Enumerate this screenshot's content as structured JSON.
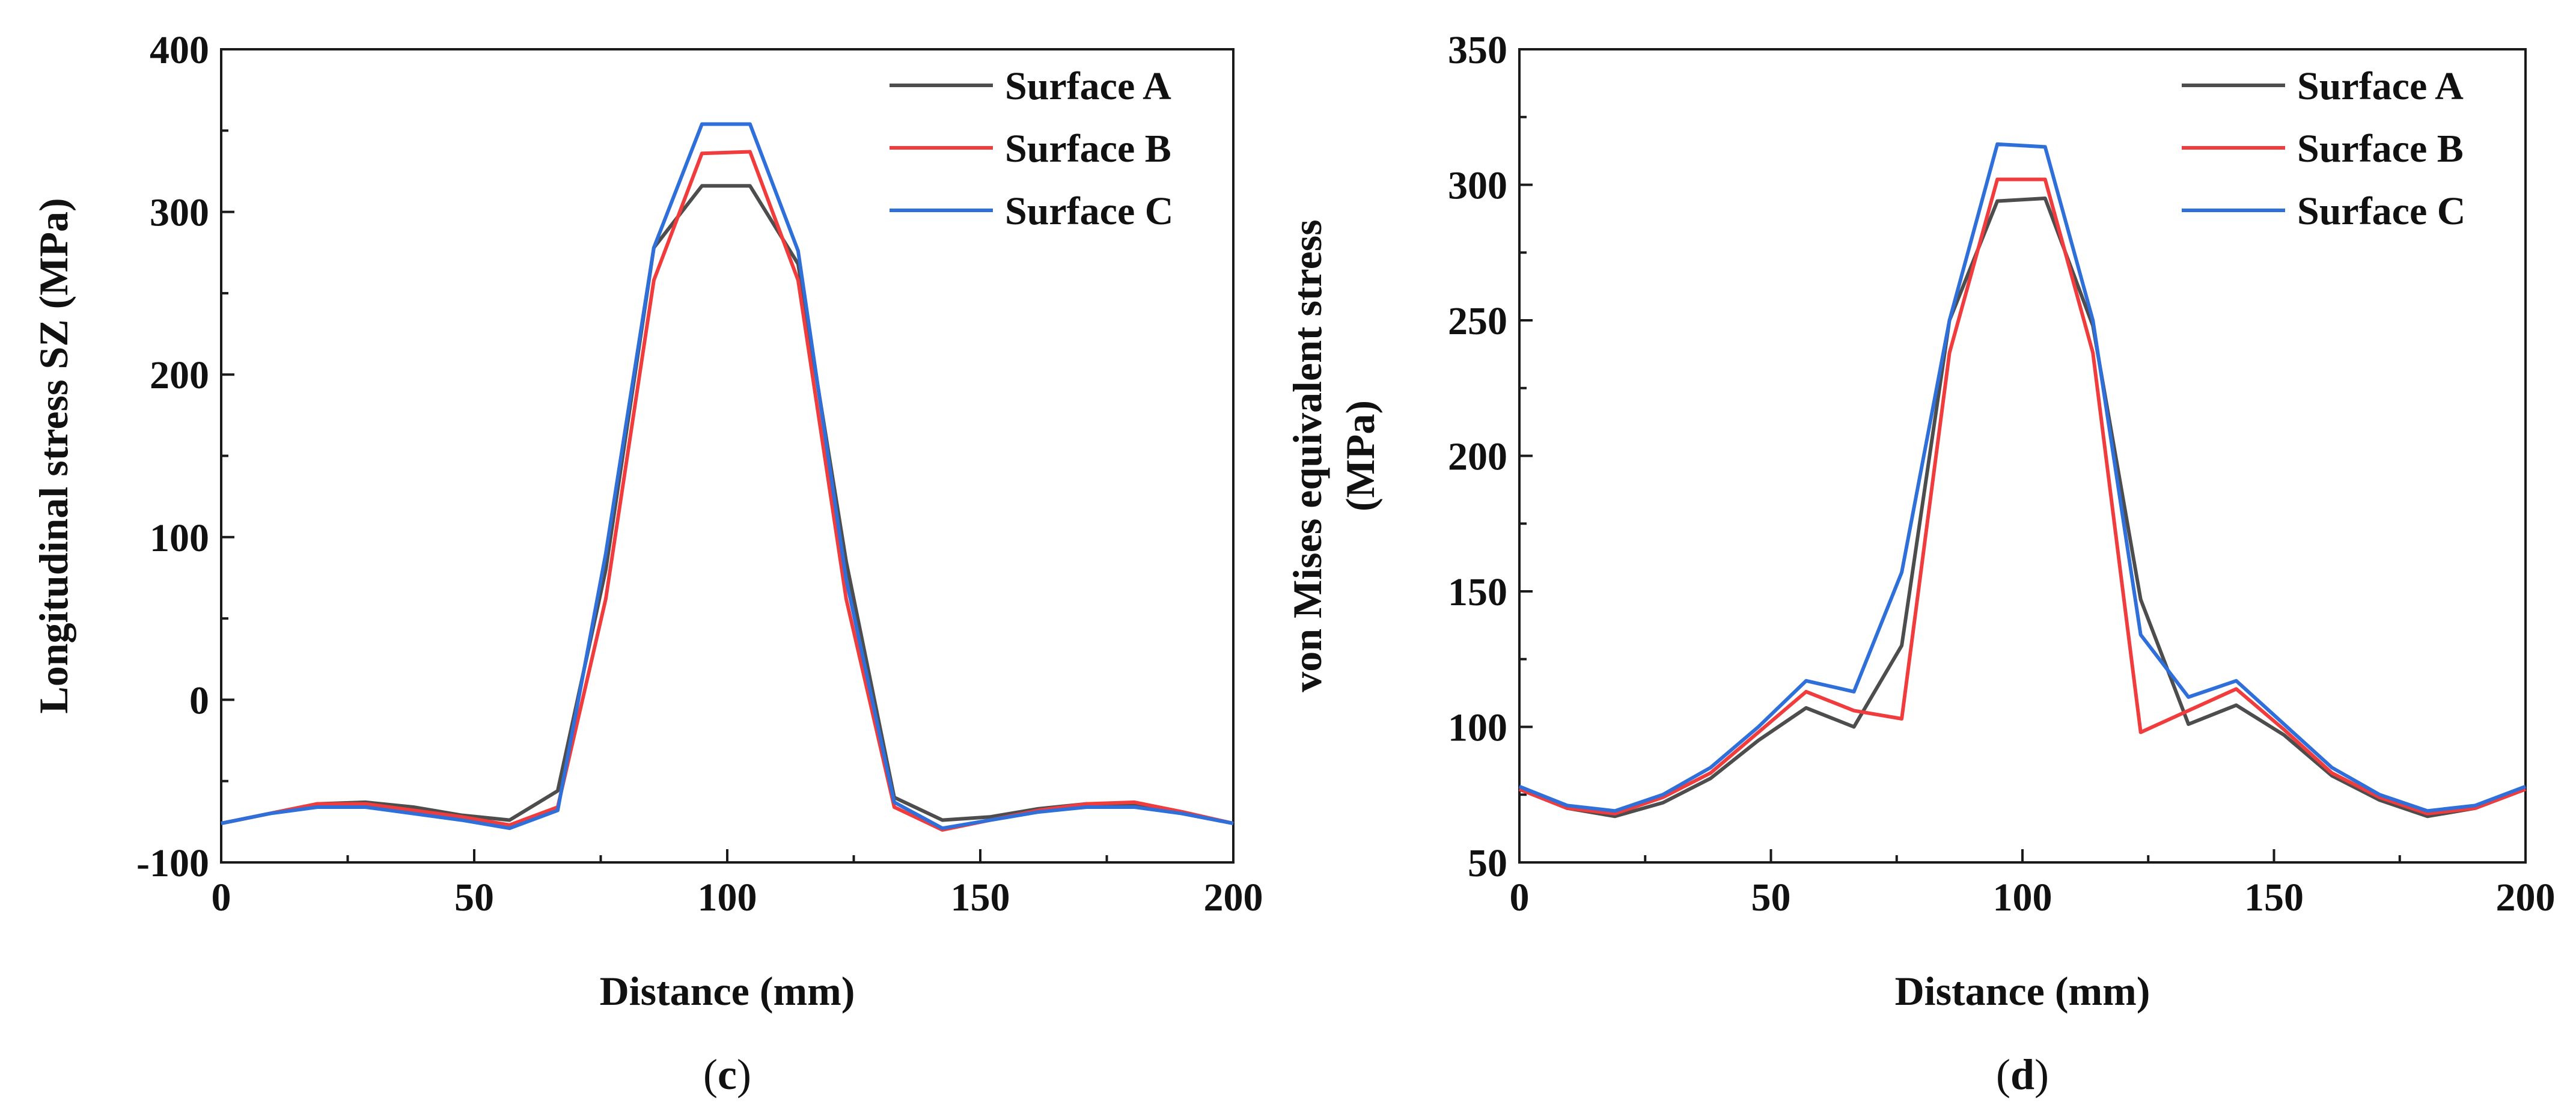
{
  "colors": {
    "surface_a": "#4d4d4d",
    "surface_b": "#f03c3c",
    "surface_c": "#2f6fd9"
  },
  "chart_data": [
    {
      "id": "c",
      "type": "line",
      "panel_label": "(c)",
      "panel_letter": "c",
      "xlabel": "Distance (mm)",
      "ylabel": "Longitudinal stress SZ (MPa)",
      "ylabel_lines": [
        "Longitudinal stress SZ (MPa)"
      ],
      "xlim": [
        0,
        200
      ],
      "ylim": [
        -100,
        400
      ],
      "xticks": [
        0,
        50,
        100,
        150,
        200
      ],
      "yticks": [
        -100,
        0,
        100,
        200,
        300,
        400
      ],
      "x_minor_ticks": [
        25,
        75,
        125,
        175
      ],
      "y_minor_ticks": [
        -50,
        50,
        150,
        250,
        350
      ],
      "legend_position": "top-right",
      "series": [
        {
          "name": "Surface A",
          "color_key": "surface_a",
          "points": [
            [
              0,
              -76
            ],
            [
              9.5,
              -70
            ],
            [
              19,
              -64
            ],
            [
              28.5,
              -63
            ],
            [
              38,
              -66
            ],
            [
              47.5,
              -71
            ],
            [
              57,
              -74
            ],
            [
              66.5,
              -56
            ],
            [
              76,
              80
            ],
            [
              85.5,
              278
            ],
            [
              95,
              316
            ],
            [
              104.5,
              316
            ],
            [
              114,
              268
            ],
            [
              123.5,
              85
            ],
            [
              133,
              -60
            ],
            [
              142.5,
              -74
            ],
            [
              152,
              -72
            ],
            [
              161.5,
              -67
            ],
            [
              171,
              -64
            ],
            [
              180.5,
              -65
            ],
            [
              190,
              -70
            ],
            [
              200,
              -76
            ]
          ]
        },
        {
          "name": "Surface B",
          "color_key": "surface_b",
          "points": [
            [
              0,
              -76
            ],
            [
              9.5,
              -70
            ],
            [
              19,
              -64
            ],
            [
              28.5,
              -64
            ],
            [
              38,
              -68
            ],
            [
              47.5,
              -72
            ],
            [
              57,
              -77
            ],
            [
              66.5,
              -66
            ],
            [
              76,
              62
            ],
            [
              85.5,
              258
            ],
            [
              95,
              336
            ],
            [
              104.5,
              337
            ],
            [
              114,
              258
            ],
            [
              123.5,
              62
            ],
            [
              133,
              -66
            ],
            [
              142.5,
              -80
            ],
            [
              152,
              -74
            ],
            [
              161.5,
              -68
            ],
            [
              171,
              -64
            ],
            [
              180.5,
              -63
            ],
            [
              190,
              -69
            ],
            [
              200,
              -76
            ]
          ]
        },
        {
          "name": "Surface C",
          "color_key": "surface_c",
          "points": [
            [
              0,
              -76
            ],
            [
              9.5,
              -70
            ],
            [
              19,
              -66
            ],
            [
              28.5,
              -66
            ],
            [
              38,
              -70
            ],
            [
              47.5,
              -74
            ],
            [
              57,
              -79
            ],
            [
              66.5,
              -68
            ],
            [
              76,
              90
            ],
            [
              85.5,
              278
            ],
            [
              95,
              354
            ],
            [
              104.5,
              354
            ],
            [
              114,
              276
            ],
            [
              123.5,
              74
            ],
            [
              133,
              -63
            ],
            [
              142.5,
              -79
            ],
            [
              152,
              -74
            ],
            [
              161.5,
              -69
            ],
            [
              171,
              -66
            ],
            [
              180.5,
              -66
            ],
            [
              190,
              -70
            ],
            [
              200,
              -76
            ]
          ]
        }
      ]
    },
    {
      "id": "d",
      "type": "line",
      "panel_label": "(d)",
      "panel_letter": "d",
      "xlabel": "Distance (mm)",
      "ylabel": "von Mises equivalent stress (MPa)",
      "ylabel_lines": [
        "von Mises equivalent stress",
        "(MPa)"
      ],
      "xlim": [
        0,
        200
      ],
      "ylim": [
        50,
        350
      ],
      "xticks": [
        0,
        50,
        100,
        150,
        200
      ],
      "yticks": [
        50,
        100,
        150,
        200,
        250,
        300,
        350
      ],
      "x_minor_ticks": [
        25,
        75,
        125,
        175
      ],
      "y_minor_ticks": [
        75,
        125,
        175,
        225,
        275,
        325
      ],
      "legend_position": "top-right",
      "series": [
        {
          "name": "Surface A",
          "color_key": "surface_a",
          "points": [
            [
              0,
              77
            ],
            [
              9.5,
              70
            ],
            [
              19,
              67
            ],
            [
              28.5,
              72
            ],
            [
              38,
              81
            ],
            [
              47.5,
              95
            ],
            [
              57,
              107
            ],
            [
              66.5,
              100
            ],
            [
              76,
              130
            ],
            [
              85.5,
              250
            ],
            [
              95,
              294
            ],
            [
              104.5,
              295
            ],
            [
              114,
              248
            ],
            [
              123.5,
              147
            ],
            [
              133,
              101
            ],
            [
              142.5,
              108
            ],
            [
              152,
              97
            ],
            [
              161.5,
              82
            ],
            [
              171,
              73
            ],
            [
              180.5,
              67
            ],
            [
              190,
              70
            ],
            [
              200,
              77
            ]
          ]
        },
        {
          "name": "Surface B",
          "color_key": "surface_b",
          "points": [
            [
              0,
              77
            ],
            [
              9.5,
              70
            ],
            [
              19,
              68
            ],
            [
              28.5,
              74
            ],
            [
              38,
              83
            ],
            [
              47.5,
              98
            ],
            [
              57,
              113
            ],
            [
              66.5,
              106
            ],
            [
              76,
              103
            ],
            [
              85.5,
              238
            ],
            [
              95,
              302
            ],
            [
              104.5,
              302
            ],
            [
              114,
              238
            ],
            [
              123.5,
              98
            ],
            [
              133,
              106
            ],
            [
              142.5,
              114
            ],
            [
              152,
              99
            ],
            [
              161.5,
              83
            ],
            [
              171,
              74
            ],
            [
              180.5,
              68
            ],
            [
              190,
              70
            ],
            [
              200,
              77
            ]
          ]
        },
        {
          "name": "Surface C",
          "color_key": "surface_c",
          "points": [
            [
              0,
              78
            ],
            [
              9.5,
              71
            ],
            [
              19,
              69
            ],
            [
              28.5,
              75
            ],
            [
              38,
              85
            ],
            [
              47.5,
              100
            ],
            [
              57,
              117
            ],
            [
              66.5,
              113
            ],
            [
              76,
              157
            ],
            [
              85.5,
              250
            ],
            [
              95,
              315
            ],
            [
              104.5,
              314
            ],
            [
              114,
              250
            ],
            [
              123.5,
              134
            ],
            [
              133,
              111
            ],
            [
              142.5,
              117
            ],
            [
              152,
              101
            ],
            [
              161.5,
              85
            ],
            [
              171,
              75
            ],
            [
              180.5,
              69
            ],
            [
              190,
              71
            ],
            [
              200,
              78
            ]
          ]
        }
      ]
    }
  ]
}
